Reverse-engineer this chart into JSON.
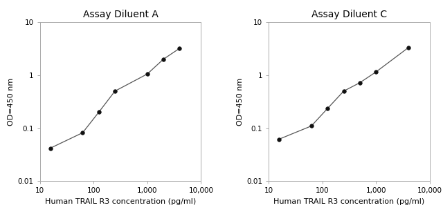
{
  "chart_A": {
    "title": "Assay Diluent A",
    "x": [
      15.625,
      62.5,
      125,
      250,
      1000,
      2000,
      4000
    ],
    "y": [
      0.042,
      0.082,
      0.2,
      0.5,
      1.05,
      2.0,
      3.2
    ],
    "xlabel": "Human TRAIL R3 concentration (pg/ml)",
    "ylabel": "OD=450 nm",
    "xlim": [
      10,
      8000
    ],
    "ylim": [
      0.01,
      10
    ]
  },
  "chart_C": {
    "title": "Assay Diluent C",
    "x": [
      15.625,
      62.5,
      125,
      250,
      500,
      1000,
      4000
    ],
    "y": [
      0.062,
      0.11,
      0.235,
      0.5,
      0.72,
      1.15,
      3.3
    ],
    "xlabel": "Human TRAIL R3 concentration (pg/ml)",
    "ylabel": "OD=450 nm",
    "xlim": [
      10,
      8000
    ],
    "ylim": [
      0.01,
      10
    ]
  },
  "line_color": "#555555",
  "marker_color": "#111111",
  "marker_size": 4,
  "line_width": 0.9,
  "bg_color": "#ffffff",
  "title_fontsize": 10,
  "label_fontsize": 8,
  "tick_fontsize": 7.5,
  "spine_color": "#aaaaaa"
}
